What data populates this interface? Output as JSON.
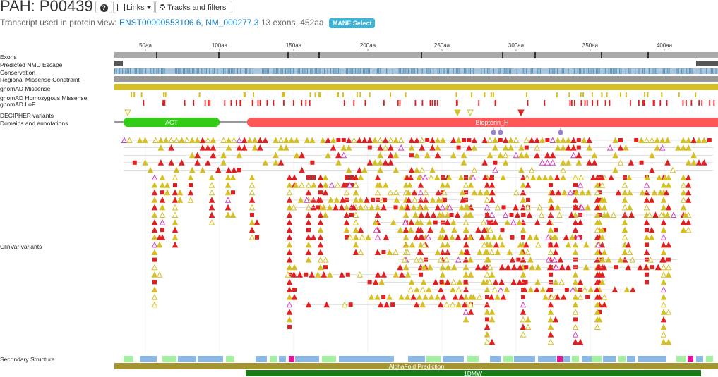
{
  "header": {
    "title": "PAH: P00439",
    "help_icon": "?",
    "links_label": "Links",
    "tracks_label": "Tracks and filters"
  },
  "subtitle": {
    "prefix": "Transcript used in protein view:",
    "transcript": "ENST00000553106.6,",
    "refseq": "NM_000277.3",
    "info": "13 exons, 452aa",
    "badge": "MANE Select"
  },
  "ruler": {
    "ticks": [
      "50aa",
      "100aa",
      "150aa",
      "200aa",
      "250aa",
      "300aa",
      "350aa",
      "400aa"
    ]
  },
  "track_labels": {
    "exons": "Exons",
    "nmd": "Predicted NMD Escape",
    "conservation": "Conservation",
    "regional": "Regional Missense Constraint",
    "gnomad_missense": "gnomAD Missense",
    "gnomad_hom": "gnomAD Homozygous Missense",
    "gnomad_lof": "gnomAD LoF",
    "decipher": "DECIPHER variants",
    "domains": "Domains and annotations",
    "clinvar": "ClinVar variants",
    "secondary": "Secondary Structure"
  },
  "domains": {
    "act": "ACT",
    "biopterin": "Biopterin_H"
  },
  "bars": {
    "alphafold": "AlphaFold Prediction",
    "pdb": "1DMW"
  },
  "colors": {
    "pathogenic": "#e02020",
    "vus": "#d4c024",
    "benign_magenta": "#d040c0",
    "domain_green": "#33cc14",
    "domain_red": "#ff5656",
    "alphafold": "#a39533",
    "pdb": "#1a7a1a",
    "conservation": "#5a92b8",
    "ss_helix": "#8ab9e8",
    "ss_strand": "#a3f0a3",
    "ss_turn": "#e8109a",
    "link": "#1a7fbf",
    "badge": "#3db3d6"
  },
  "icons": {
    "links": "external-link-icon",
    "tracks": "gear-icon",
    "help": "help-icon",
    "caret": "caret-down-icon"
  }
}
